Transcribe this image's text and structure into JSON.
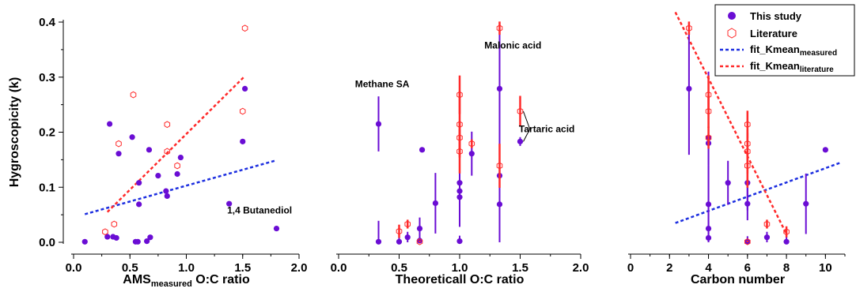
{
  "colors": {
    "measured": "#6a0dd4",
    "literature": "#ff2a2a",
    "fit_measured": "#1d2fe0",
    "fit_literature": "#ff2a2a",
    "axis": "#000000"
  },
  "shared_ylabel": "Hygroscopicity (k)",
  "legend": {
    "position": "top-right",
    "this_study": "This study",
    "literature": "Literature",
    "fit_measured_base": "fit_Kmean",
    "fit_measured_sub": "measured",
    "fit_literature_base": "fit_Kmean",
    "fit_literature_sub": "literature"
  },
  "chart_data": [
    {
      "type": "scatter",
      "xlabel_main": "AMS",
      "xlabel_sub": "measured",
      "xlabel_rest": " O:C ratio",
      "xlim": [
        0,
        2.0
      ],
      "ylim": [
        0,
        0.4
      ],
      "xticks": [
        "0.0",
        "0.5",
        "1.0",
        "1.5",
        "2.0"
      ],
      "yticks": [
        "0.0",
        "0.1",
        "0.2",
        "0.3",
        "0.4"
      ],
      "series": [
        {
          "name": "This study",
          "marker": "filled",
          "points": [
            [
              0.1,
              0.001
            ],
            [
              0.3,
              0.01
            ],
            [
              0.32,
              0.215
            ],
            [
              0.35,
              0.01
            ],
            [
              0.38,
              0.008
            ],
            [
              0.4,
              0.161
            ],
            [
              0.52,
              0.191
            ],
            [
              0.55,
              0.001
            ],
            [
              0.57,
              0.001
            ],
            [
              0.58,
              0.108
            ],
            [
              0.58,
              0.069
            ],
            [
              0.65,
              0.002
            ],
            [
              0.67,
              0.168
            ],
            [
              0.68,
              0.009
            ],
            [
              0.75,
              0.121
            ],
            [
              0.82,
              0.093
            ],
            [
              0.83,
              0.084
            ],
            [
              0.92,
              0.124
            ],
            [
              0.95,
              0.154
            ],
            [
              1.38,
              0.07
            ],
            [
              1.5,
              0.183
            ],
            [
              1.52,
              0.279
            ],
            [
              1.8,
              0.025
            ]
          ]
        },
        {
          "name": "Literature",
          "marker": "open",
          "points": [
            [
              0.28,
              0.019
            ],
            [
              0.36,
              0.033
            ],
            [
              0.4,
              0.179
            ],
            [
              0.53,
              0.268
            ],
            [
              0.83,
              0.214
            ],
            [
              0.83,
              0.165
            ],
            [
              0.92,
              0.139
            ],
            [
              1.5,
              0.238
            ],
            [
              1.52,
              0.389
            ]
          ]
        }
      ],
      "fits": [
        {
          "name": "fit_Kmean_measured",
          "x": [
            0.1,
            1.8
          ],
          "y": [
            0.051,
            0.149
          ]
        },
        {
          "name": "fit_Kmean_literature",
          "x": [
            0.3,
            1.52
          ],
          "y": [
            0.055,
            0.302
          ]
        }
      ],
      "annotations": [
        {
          "text": "1,4 Butanediol",
          "x": 1.65,
          "y": 0.052
        }
      ]
    },
    {
      "type": "scatter",
      "xlabel": "Theoreticall O:C ratio",
      "xlim": [
        0,
        2.0
      ],
      "ylim": [
        0,
        0.4
      ],
      "xticks": [
        "0.0",
        "0.5",
        "1.0",
        "1.5",
        "2.0"
      ],
      "series": [
        {
          "name": "This study",
          "marker": "filled",
          "points": [
            [
              0.33,
              0.215,
              0.05
            ],
            [
              0.33,
              0.001,
              0.038
            ],
            [
              0.5,
              0.001,
              0.01
            ],
            [
              0.57,
              0.009,
              0.01
            ],
            [
              0.67,
              0.003,
              0.01
            ],
            [
              0.67,
              0.025,
              0.02
            ],
            [
              0.69,
              0.168,
              0.0
            ],
            [
              0.8,
              0.071,
              0.055
            ],
            [
              1.0,
              0.108,
              0.08
            ],
            [
              1.0,
              0.093,
              0.06
            ],
            [
              1.0,
              0.082,
              0.04
            ],
            [
              1.0,
              0.002,
              0.01
            ],
            [
              1.1,
              0.161,
              0.04
            ],
            [
              1.33,
              0.279,
              0.12
            ],
            [
              1.33,
              0.121,
              0.04
            ],
            [
              1.33,
              0.069,
              0.085
            ],
            [
              1.5,
              0.183,
              0.008
            ]
          ]
        },
        {
          "name": "Literature",
          "marker": "open",
          "points": [
            [
              0.5,
              0.02,
              0.012
            ],
            [
              0.57,
              0.033,
              0.008
            ],
            [
              0.67,
              0.001,
              0.002
            ],
            [
              1.0,
              0.268,
              0.035
            ],
            [
              1.0,
              0.214,
              0.06
            ],
            [
              1.0,
              0.19,
              0.03
            ],
            [
              1.0,
              0.165,
              0.04
            ],
            [
              1.1,
              0.179,
              0.008
            ],
            [
              1.33,
              0.389,
              0.012
            ],
            [
              1.33,
              0.139,
              0.04
            ],
            [
              1.5,
              0.238,
              0.028
            ]
          ]
        }
      ],
      "annotations": [
        {
          "text": "Methane SA",
          "x": 0.36,
          "y": 0.282
        },
        {
          "text": "Malonic acid",
          "x": 1.44,
          "y": 0.352
        },
        {
          "text": "Tartaric acid",
          "x": 1.72,
          "y": 0.2
        }
      ]
    },
    {
      "type": "scatter",
      "xlabel": "Carbon number",
      "xlim": [
        0,
        11
      ],
      "ylim": [
        0,
        0.4
      ],
      "xticks": [
        "0",
        "2",
        "4",
        "6",
        "8",
        "10"
      ],
      "series": [
        {
          "name": "This study",
          "marker": "filled",
          "points": [
            [
              3,
              0.279,
              0.12
            ],
            [
              4,
              0.19,
              0.12
            ],
            [
              4,
              0.18,
              0.04
            ],
            [
              4,
              0.069,
              0.07
            ],
            [
              4,
              0.025,
              0.04
            ],
            [
              4,
              0.008,
              0.03
            ],
            [
              5,
              0.108,
              0.04
            ],
            [
              6,
              0.108,
              0.05
            ],
            [
              6,
              0.07,
              0.03
            ],
            [
              6,
              0.001,
              0.01
            ],
            [
              7,
              0.009,
              0.01
            ],
            [
              8,
              0.001,
              0.01
            ],
            [
              9,
              0.07,
              0.055
            ],
            [
              10,
              0.168,
              0.0
            ]
          ]
        },
        {
          "name": "Literature",
          "marker": "open",
          "points": [
            [
              3,
              0.389,
              0.012
            ],
            [
              4,
              0.268,
              0.035
            ],
            [
              4,
              0.238,
              0.03
            ],
            [
              4,
              0.19,
              0.02
            ],
            [
              6,
              0.214,
              0.025
            ],
            [
              6,
              0.179,
              0.02
            ],
            [
              6,
              0.165,
              0.04
            ],
            [
              6,
              0.139,
              0.04
            ],
            [
              6,
              0.001,
              0.002
            ],
            [
              7,
              0.033,
              0.008
            ],
            [
              8,
              0.019,
              0.01
            ]
          ]
        }
      ],
      "fits": [
        {
          "name": "fit_Kmean_measured",
          "x": [
            2.3,
            10.8
          ],
          "y": [
            0.035,
            0.145
          ]
        },
        {
          "name": "fit_Kmean_literature",
          "x": [
            2.3,
            8.0
          ],
          "y": [
            0.418,
            0.015
          ]
        }
      ]
    }
  ]
}
